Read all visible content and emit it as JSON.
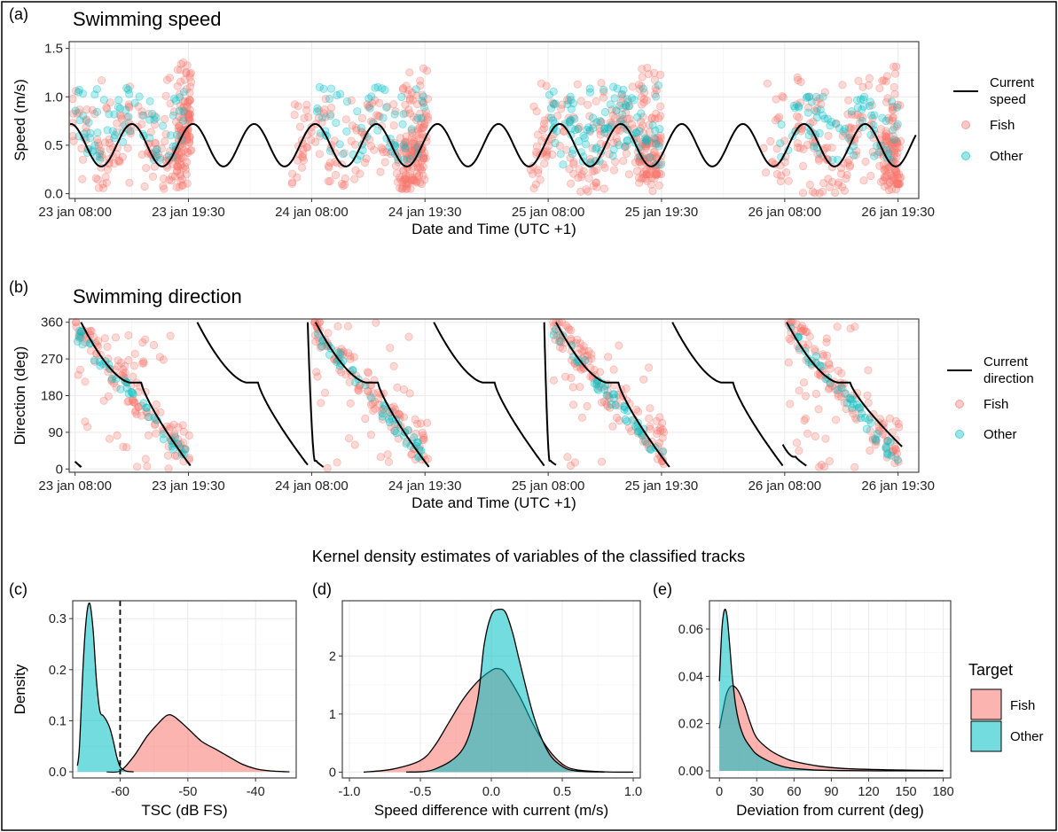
{
  "colors": {
    "fish": "#F8766D",
    "other": "#00BFC4",
    "line": "#000000",
    "grid": "#EBEBEB"
  },
  "panels": {
    "a": {
      "tag": "(a)",
      "title": "Swimming speed"
    },
    "b": {
      "tag": "(b)",
      "title": "Swimming direction"
    },
    "c": {
      "tag": "(c)"
    },
    "d": {
      "tag": "(d)"
    },
    "e": {
      "tag": "(e)"
    }
  },
  "section_title": "Kernel density estimates of variables of the classified tracks",
  "legends": {
    "speed": {
      "line_label_1": "Current",
      "line_label_2": "speed",
      "fish": "Fish",
      "other": "Other"
    },
    "direction": {
      "line_label_1": "Current",
      "line_label_2": "direction",
      "fish": "Fish",
      "other": "Other"
    },
    "target": {
      "title": "Target",
      "fish": "Fish",
      "other": "Other"
    }
  },
  "chart_data": [
    {
      "id": "a",
      "type": "scatter",
      "title": "Swimming speed",
      "xlabel": "Date and Time (UTC +1)",
      "ylabel": "Speed (m/s)",
      "xlim": [
        -0.6,
        85.6
      ],
      "ylim": [
        -0.05,
        1.57
      ],
      "x_units": "hours since 23 jan 08:00",
      "xticks": [
        0,
        11.5,
        24,
        35.5,
        48,
        59.5,
        72,
        83.5
      ],
      "xtick_labels": [
        "23 jan 08:00",
        "23 jan 19:30",
        "24 jan 08:00",
        "24 jan 19:30",
        "25 jan 08:00",
        "25 jan 19:30",
        "26 jan 08:00",
        "26 jan 19:30"
      ],
      "yticks": [
        0.0,
        0.5,
        1.0,
        1.5
      ],
      "ytick_labels": [
        "0.0",
        "0.5",
        "1.0",
        "1.5"
      ],
      "grid": true,
      "legend_position": "right",
      "series": [
        {
          "name": "Current speed",
          "kind": "line",
          "x_range": [
            -0.5,
            85.5
          ],
          "mean": 0.5,
          "amplitude": 0.22,
          "period_h": 6.2,
          "phase": 0.45
        },
        {
          "name": "Fish",
          "kind": "points",
          "alpha": 0.3,
          "clusters": [
            {
              "x": [
                -0.3,
                11.7
              ],
              "y": [
                0.05,
                1.2
              ],
              "n": 150
            },
            {
              "x": [
                10.2,
                11.8
              ],
              "y": [
                0.05,
                1.4
              ],
              "n": 110
            },
            {
              "x": [
                22.0,
                35.6
              ],
              "y": [
                0.05,
                1.0
              ],
              "n": 140
            },
            {
              "x": [
                33.2,
                35.8
              ],
              "y": [
                0.05,
                1.3
              ],
              "n": 130
            },
            {
              "x": [
                46.2,
                59.3
              ],
              "y": [
                0.02,
                1.15
              ],
              "n": 180
            },
            {
              "x": [
                57.2,
                59.5
              ],
              "y": [
                0.2,
                1.3
              ],
              "n": 90
            },
            {
              "x": [
                69.8,
                83.6
              ],
              "y": [
                0.0,
                1.2
              ],
              "n": 170
            },
            {
              "x": [
                82.0,
                83.8
              ],
              "y": [
                0.1,
                1.35
              ],
              "n": 90
            }
          ]
        },
        {
          "name": "Other",
          "kind": "points",
          "alpha": 0.3,
          "clusters": [
            {
              "x": [
                0.0,
                11.5
              ],
              "y": [
                0.35,
                1.1
              ],
              "n": 75
            },
            {
              "x": [
                24.0,
                35.5
              ],
              "y": [
                0.35,
                1.1
              ],
              "n": 65
            },
            {
              "x": [
                48.0,
                59.5
              ],
              "y": [
                0.3,
                1.15
              ],
              "n": 110
            },
            {
              "x": [
                71.5,
                83.5
              ],
              "y": [
                0.35,
                1.0
              ],
              "n": 75
            }
          ]
        }
      ]
    },
    {
      "id": "b",
      "type": "scatter",
      "title": "Swimming direction",
      "xlabel": "Date and Time (UTC +1)",
      "ylabel": "Direction (deg)",
      "xlim": [
        -0.6,
        85.6
      ],
      "ylim": [
        -8,
        368
      ],
      "x_units": "hours since 23 jan 08:00",
      "xticks": [
        0,
        11.5,
        24,
        35.5,
        48,
        59.5,
        72,
        83.5
      ],
      "xtick_labels": [
        "23 jan 08:00",
        "23 jan 19:30",
        "24 jan 08:00",
        "24 jan 19:30",
        "25 jan 08:00",
        "25 jan 19:30",
        "26 jan 08:00",
        "26 jan 19:30"
      ],
      "yticks": [
        0,
        90,
        180,
        270,
        360
      ],
      "ytick_labels": [
        "0",
        "90",
        "180",
        "270",
        "360"
      ],
      "grid": true,
      "legend_position": "right",
      "series": [
        {
          "name": "Current direction",
          "kind": "line",
          "segments": [
            {
              "x": [
                0.0,
                0.6
              ],
              "y": [
                18,
                5
              ]
            },
            {
              "x": [
                0.6,
                11.7
              ],
              "y": [
                360,
                8
              ],
              "plateau": 212
            },
            {
              "x": [
                12.4,
                23.6
              ],
              "y": [
                360,
                10
              ],
              "plateau": 212
            },
            {
              "x": [
                23.6,
                25.2
              ],
              "y": [
                360,
                5
              ],
              "plateau": 20
            },
            {
              "x": [
                24.4,
                35.9
              ],
              "y": [
                360,
                5
              ],
              "plateau": 212
            },
            {
              "x": [
                36.4,
                47.6
              ],
              "y": [
                360,
                8
              ],
              "plateau": 212
            },
            {
              "x": [
                47.6,
                48.8
              ],
              "y": [
                360,
                10
              ],
              "plateau": 20
            },
            {
              "x": [
                48.8,
                60.3
              ],
              "y": [
                360,
                5
              ],
              "plateau": 212
            },
            {
              "x": [
                60.6,
                71.8
              ],
              "y": [
                360,
                8
              ],
              "plateau": 212
            },
            {
              "x": [
                71.8,
                74.2
              ],
              "y": [
                60,
                8
              ],
              "plateau": 30
            },
            {
              "x": [
                72.2,
                83.9
              ],
              "y": [
                360,
                55
              ],
              "plateau": 212
            }
          ]
        },
        {
          "name": "Fish",
          "kind": "points",
          "alpha": 0.3,
          "follows_current": true
        },
        {
          "name": "Other",
          "kind": "points",
          "alpha": 0.3,
          "follows_current": true
        }
      ]
    },
    {
      "id": "c",
      "type": "area",
      "xlabel": "TSC (dB FS)",
      "ylabel": "Density",
      "xlim": [
        -67,
        -34
      ],
      "ylim": [
        -0.012,
        0.335
      ],
      "xticks": [
        -60,
        -50,
        -40
      ],
      "xtick_labels": [
        "-60",
        "-50",
        "-40"
      ],
      "yticks": [
        0.0,
        0.1,
        0.2,
        0.3
      ],
      "ytick_labels": [
        "0.0",
        "0.1",
        "0.2",
        "0.3"
      ],
      "vline": -60,
      "grid": true,
      "series": [
        {
          "name": "Fish",
          "x": [
            -62,
            -60,
            -58,
            -56,
            -54,
            -53,
            -52,
            -50,
            -48,
            -46,
            -44,
            -42,
            -40,
            -38,
            -36,
            -35
          ],
          "y": [
            0,
            0.002,
            0.03,
            0.07,
            0.1,
            0.111,
            0.108,
            0.085,
            0.06,
            0.045,
            0.03,
            0.015,
            0.006,
            0.002,
            0.0005,
            0
          ]
        },
        {
          "name": "Other",
          "x": [
            -66.3,
            -66,
            -65.5,
            -65,
            -64.5,
            -64,
            -63.5,
            -63,
            -62.5,
            -62,
            -61.5,
            -61,
            -60.5,
            -60,
            -59.5,
            -59,
            -58
          ],
          "y": [
            0.012,
            0.05,
            0.2,
            0.3,
            0.33,
            0.28,
            0.18,
            0.12,
            0.11,
            0.1,
            0.085,
            0.06,
            0.03,
            0.01,
            0.004,
            0.001,
            0
          ]
        }
      ]
    },
    {
      "id": "d",
      "type": "area",
      "xlabel": "Speed difference with current (m/s)",
      "ylabel": "",
      "xlim": [
        -1.05,
        1.05
      ],
      "ylim": [
        -0.1,
        2.95
      ],
      "xticks": [
        -1.0,
        -0.5,
        0.0,
        0.5,
        1.0
      ],
      "xtick_labels": [
        "-1.0",
        "-0.5",
        "0.0",
        "0.5",
        "1.0"
      ],
      "yticks": [
        0,
        1,
        2
      ],
      "ytick_labels": [
        "0",
        "1",
        "2"
      ],
      "grid": true,
      "series": [
        {
          "name": "Fish",
          "x": [
            -0.9,
            -0.7,
            -0.5,
            -0.4,
            -0.3,
            -0.2,
            -0.1,
            0.0,
            0.05,
            0.1,
            0.2,
            0.3,
            0.4,
            0.5,
            0.6,
            0.8,
            1.0
          ],
          "y": [
            0,
            0.05,
            0.2,
            0.45,
            0.85,
            1.25,
            1.55,
            1.75,
            1.78,
            1.7,
            1.3,
            0.8,
            0.4,
            0.14,
            0.04,
            0.005,
            0
          ]
        },
        {
          "name": "Other",
          "x": [
            -0.6,
            -0.4,
            -0.2,
            -0.1,
            -0.05,
            0.0,
            0.05,
            0.1,
            0.15,
            0.2,
            0.3,
            0.4,
            0.5,
            0.6,
            0.8
          ],
          "y": [
            0,
            0.05,
            0.4,
            1.2,
            2.2,
            2.7,
            2.8,
            2.75,
            2.4,
            1.9,
            0.95,
            0.35,
            0.1,
            0.02,
            0
          ]
        }
      ]
    },
    {
      "id": "e",
      "type": "area",
      "xlabel": "Deviation from current (deg)",
      "ylabel": "",
      "xlim": [
        -8,
        186
      ],
      "ylim": [
        -0.003,
        0.072
      ],
      "xticks": [
        0,
        30,
        60,
        90,
        120,
        150,
        180
      ],
      "xtick_labels": [
        "0",
        "30",
        "60",
        "90",
        "120",
        "150",
        "180"
      ],
      "yticks": [
        0.0,
        0.02,
        0.04,
        0.06
      ],
      "ytick_labels": [
        "0.00",
        "0.02",
        "0.04",
        "0.06"
      ],
      "grid": true,
      "series": [
        {
          "name": "Fish",
          "x": [
            0,
            3,
            6,
            10,
            15,
            20,
            25,
            30,
            40,
            50,
            60,
            80,
            100,
            140,
            180
          ],
          "y": [
            0.018,
            0.026,
            0.033,
            0.036,
            0.034,
            0.028,
            0.02,
            0.014,
            0.009,
            0.006,
            0.004,
            0.002,
            0.001,
            0.0004,
            0.0002
          ]
        },
        {
          "name": "Other",
          "x": [
            0,
            2,
            4,
            6,
            8,
            10,
            13,
            16,
            20,
            25,
            30,
            40,
            50,
            60,
            80,
            100,
            140,
            180
          ],
          "y": [
            0.038,
            0.06,
            0.068,
            0.066,
            0.055,
            0.042,
            0.028,
            0.02,
            0.014,
            0.01,
            0.007,
            0.004,
            0.002,
            0.001,
            0.0003,
            0.0001,
            0,
            0
          ]
        }
      ]
    }
  ]
}
